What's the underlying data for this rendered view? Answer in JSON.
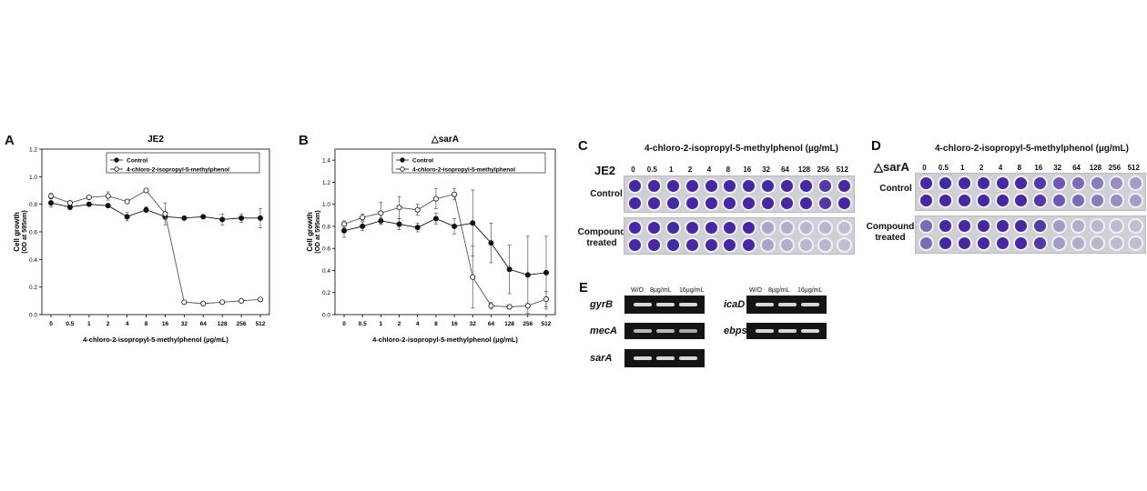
{
  "panels": {
    "a": "A",
    "b": "B",
    "c": "C",
    "d": "D",
    "e": "E"
  },
  "chart_data": [
    {
      "type": "line",
      "title": "JE2",
      "xlabel": "4-chloro-2-isopropyl-5-methylphenol  (µg/mL)",
      "ylabel": "Cell growth",
      "ylabel2": "(OD at 595nm)",
      "categories": [
        "0",
        "0.5",
        "1",
        "2",
        "4",
        "8",
        "16",
        "32",
        "64",
        "128",
        "256",
        "512"
      ],
      "ylim": [
        0,
        1.2
      ],
      "yticks": [
        "0.0",
        "0.2",
        "0.4",
        "0.6",
        "0.8",
        "1.0",
        "1.2"
      ],
      "legend": "top-right",
      "series": [
        {
          "name": "Control",
          "marker": "filled",
          "values": [
            0.81,
            0.78,
            0.8,
            0.79,
            0.71,
            0.76,
            0.71,
            0.7,
            0.71,
            0.69,
            0.7,
            0.7
          ],
          "errors": [
            0.03,
            0.02,
            0.01,
            0.01,
            0.03,
            0.02,
            0.02,
            0.01,
            0.01,
            0.04,
            0.03,
            0.07
          ]
        },
        {
          "name": "4-chloro-2-isopropyl-5-methylphenol",
          "marker": "open",
          "values": [
            0.86,
            0.81,
            0.85,
            0.86,
            0.82,
            0.9,
            0.73,
            0.09,
            0.08,
            0.09,
            0.1,
            0.11
          ],
          "errors": [
            0.02,
            0.01,
            0.01,
            0.03,
            0.01,
            0.01,
            0.08,
            0.01,
            0.01,
            0.01,
            0.01,
            0.01
          ]
        }
      ]
    },
    {
      "type": "line",
      "title": "△sarA",
      "xlabel": "4-chloro-2-isopropyl-5-methylphenol  (µg/mL)",
      "ylabel": "Cell growth",
      "ylabel2": "(OD at 595nm)",
      "categories": [
        "0",
        "0.5",
        "1",
        "2",
        "4",
        "8",
        "16",
        "32",
        "64",
        "128",
        "256",
        "512"
      ],
      "ylim": [
        0,
        1.5
      ],
      "yticks": [
        "0.0",
        "0.2",
        "0.4",
        "0.6",
        "0.8",
        "1.0",
        "1.2",
        "1.4"
      ],
      "legend": "top-right",
      "series": [
        {
          "name": "Control",
          "marker": "filled",
          "values": [
            0.76,
            0.8,
            0.85,
            0.82,
            0.79,
            0.87,
            0.8,
            0.83,
            0.65,
            0.41,
            0.36,
            0.38
          ],
          "errors": [
            0.06,
            0.04,
            0.03,
            0.05,
            0.04,
            0.05,
            0.07,
            0.3,
            0.18,
            0.22,
            0.35,
            0.33
          ]
        },
        {
          "name": "4-chloro-2-isopropyl-5-methylphenol",
          "marker": "open",
          "values": [
            0.82,
            0.88,
            0.92,
            0.97,
            0.95,
            1.05,
            1.09,
            0.34,
            0.08,
            0.07,
            0.08,
            0.14
          ],
          "errors": [
            0.03,
            0.03,
            0.1,
            0.1,
            0.05,
            0.09,
            0.05,
            0.28,
            0.03,
            0.02,
            0.02,
            0.07
          ]
        }
      ]
    }
  ],
  "plate_c": {
    "title": "4-chloro-2-isopropyl-5-methylphenol (µg/mL)",
    "strain": "JE2",
    "concentrations": [
      "0",
      "0.5",
      "1",
      "2",
      "4",
      "8",
      "16",
      "32",
      "64",
      "128",
      "256",
      "512"
    ],
    "row_label_1": "Control",
    "row_label_2a": "Compound",
    "row_label_2b": "treated",
    "control_stain": [
      1,
      1,
      1,
      1,
      1,
      1,
      1,
      1,
      1,
      1,
      0.9,
      1
    ],
    "treated_stain": [
      1,
      1,
      1,
      1,
      1,
      1,
      1,
      0.25,
      0.2,
      0.15,
      0.15,
      0.1
    ]
  },
  "plate_d": {
    "title": "4-chloro-2-isopropyl-5-methylphenol (µg/mL)",
    "strain": "△sarA",
    "concentrations": [
      "0",
      "0.5",
      "1",
      "2",
      "4",
      "8",
      "16",
      "32",
      "64",
      "128",
      "256",
      "512"
    ],
    "row_label_1": "Control",
    "row_label_2a": "Compound",
    "row_label_2b": "treated",
    "control_stain": [
      1,
      1,
      1,
      1,
      1,
      1,
      0.9,
      0.7,
      0.6,
      0.5,
      0.4,
      0.3
    ],
    "treated_stain": [
      0.6,
      1,
      1,
      1,
      1,
      1,
      0.9,
      0.3,
      0.2,
      0.15,
      0.12,
      0.1
    ]
  },
  "gel_e": {
    "lanes": [
      "W/O",
      "8µg/mL",
      "16µg/mL"
    ],
    "genes_left": [
      "gyrB",
      "mecA",
      "sarA"
    ],
    "genes_right": [
      "icaD",
      "ebps"
    ]
  }
}
